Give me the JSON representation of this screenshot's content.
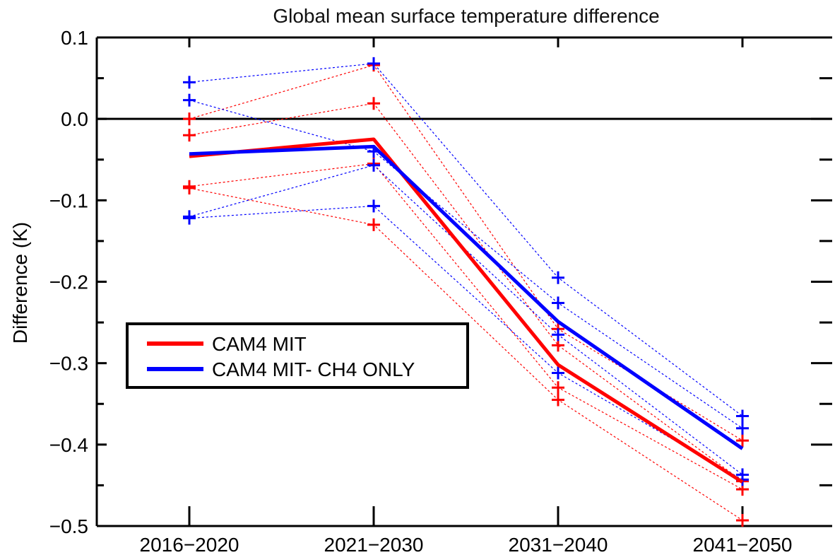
{
  "chart_data": {
    "type": "line",
    "title": "Global mean surface temperature difference",
    "xlabel": "",
    "ylabel": "Difference (K)",
    "categories": [
      "2016−2020",
      "2021−2030",
      "2031−2040",
      "2041−2050"
    ],
    "ylim": [
      -0.5,
      0.1
    ],
    "yticks": [
      0.1,
      0.0,
      -0.1,
      -0.2,
      -0.3,
      -0.4,
      -0.5
    ],
    "ytick_labels": [
      "0.1",
      "0.0",
      "−0.1",
      "−0.2",
      "−0.3",
      "−0.4",
      "−0.5"
    ],
    "zero_line": 0.0,
    "grid": false,
    "legend_position": "center-left",
    "series": [
      {
        "name": "CAM4 MIT",
        "color": "#ff0000",
        "values": [
          -0.046,
          -0.025,
          -0.302,
          -0.446
        ]
      },
      {
        "name": "CAM4 MIT- CH4 ONLY",
        "color": "#0000ff",
        "values": [
          -0.043,
          -0.034,
          -0.249,
          -0.405
        ]
      }
    ],
    "members": [
      {
        "color": "#ff0000",
        "values": [
          0.0,
          0.066,
          -0.258,
          -0.395
        ]
      },
      {
        "color": "#ff0000",
        "values": [
          -0.02,
          0.019,
          -0.278,
          -0.445
        ]
      },
      {
        "color": "#ff0000",
        "values": [
          -0.083,
          -0.055,
          -0.33,
          -0.455
        ]
      },
      {
        "color": "#ff0000",
        "values": [
          -0.085,
          -0.13,
          -0.345,
          -0.493
        ]
      },
      {
        "color": "#0000ff",
        "values": [
          0.045,
          0.068,
          -0.195,
          -0.365
        ]
      },
      {
        "color": "#0000ff",
        "values": [
          0.023,
          -0.04,
          -0.226,
          -0.38
        ]
      },
      {
        "color": "#0000ff",
        "values": [
          -0.12,
          -0.057,
          -0.265,
          -0.437
        ]
      },
      {
        "color": "#0000ff",
        "values": [
          -0.122,
          -0.107,
          -0.312,
          -0.443
        ]
      }
    ]
  }
}
